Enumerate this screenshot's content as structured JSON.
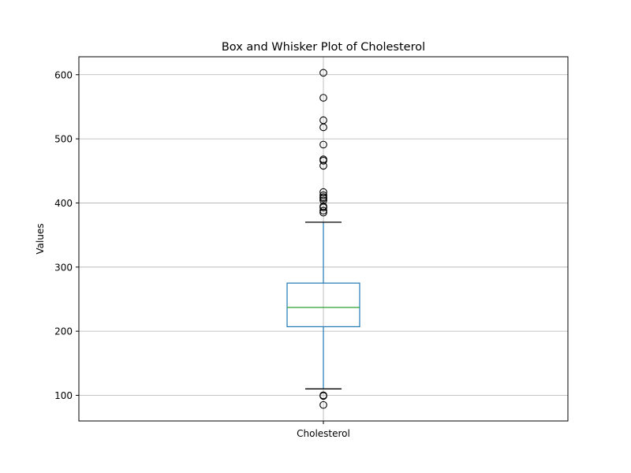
{
  "chart_data": {
    "type": "box",
    "title": "Box and Whisker Plot of Cholesterol",
    "xlabel": "",
    "ylabel": "Values",
    "ylim": [
      60,
      628
    ],
    "yticks": [
      100,
      200,
      300,
      400,
      500,
      600
    ],
    "grid": true,
    "categories": [
      "Cholesterol"
    ],
    "box": {
      "category": "Cholesterol",
      "whisker_low": 110,
      "q1": 207,
      "median": 237,
      "q3": 275,
      "whisker_high": 370,
      "outliers": [
        603,
        564,
        529,
        518,
        491,
        468,
        466,
        458,
        417,
        412,
        409,
        407,
        404,
        395,
        393,
        388,
        385,
        100,
        99,
        85
      ]
    },
    "colors": {
      "box": "#1f77b4",
      "median": "#2ca02c",
      "whisker_cap": "#000000",
      "grid": "#b0b0b0"
    }
  }
}
